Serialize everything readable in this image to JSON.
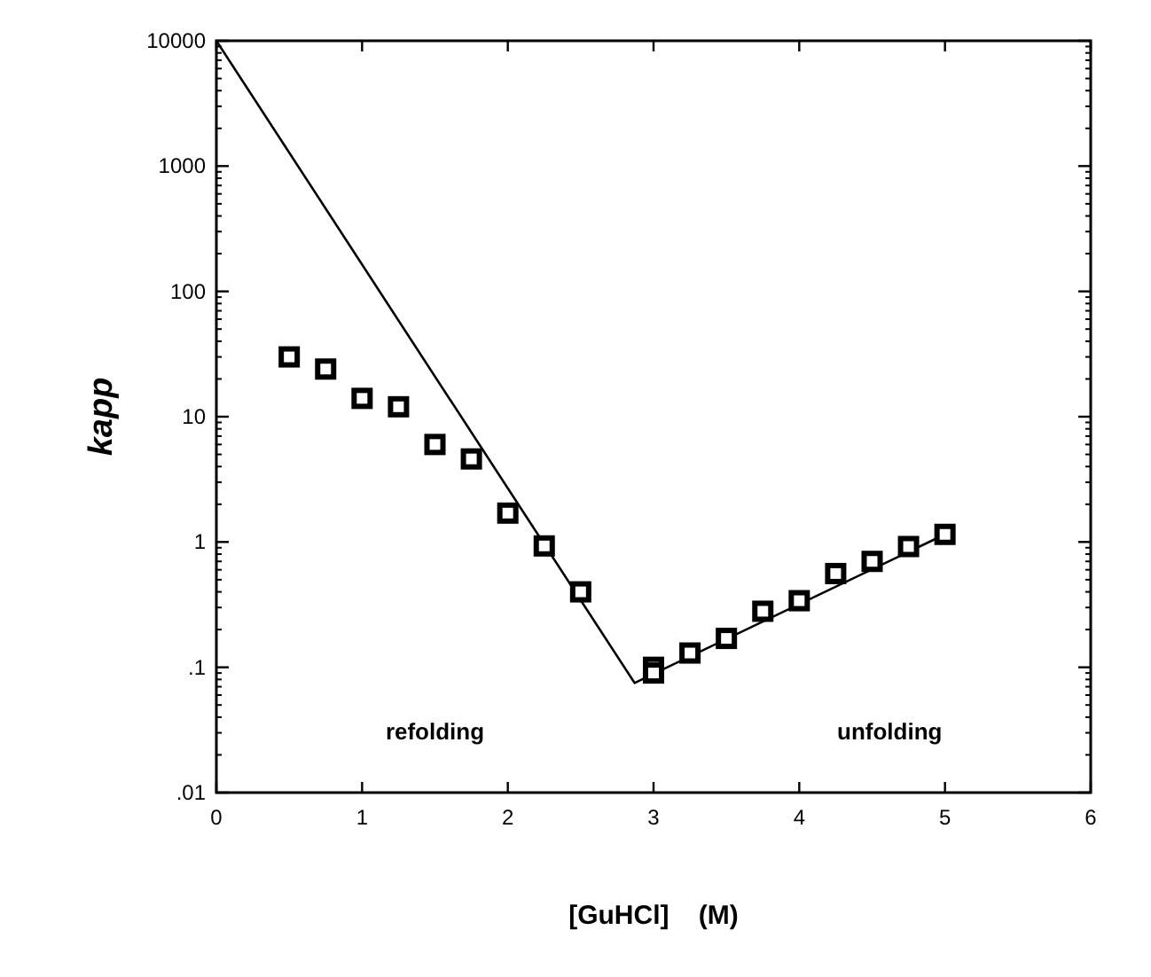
{
  "chart_data": {
    "type": "scatter",
    "xlabel": "[GuHCl]    (M)",
    "ylabel": "kapp",
    "log": "y",
    "xlim": [
      0,
      6
    ],
    "xticks": [
      0,
      1,
      2,
      3,
      4,
      5,
      6
    ],
    "ylim": [
      0.01,
      10000
    ],
    "yticks": [
      {
        "value": 0.01,
        "label": ".01"
      },
      {
        "value": 0.1,
        "label": ".1"
      },
      1,
      10,
      100,
      1000,
      10000
    ],
    "marker": "square",
    "grid": false,
    "series": [
      {
        "color": "#000000",
        "x": [
          0.5,
          0.75,
          1,
          1.25,
          1.5,
          1.75,
          2,
          2.25,
          2.5,
          3,
          3,
          3.25,
          3.5,
          3.75,
          4,
          4.25,
          4.5,
          4.75,
          5
        ],
        "values": [
          30,
          24,
          14,
          12,
          6,
          4.6,
          1.7,
          0.93,
          0.4,
          0.1,
          0.09,
          0.13,
          0.17,
          0.28,
          0.34,
          0.56,
          0.7,
          0.92,
          1.15
        ]
      },
      {
        "type": "line",
        "color": "#000000",
        "x": [
          0,
          2.87,
          5
        ],
        "values": [
          10000,
          0.075,
          1.15
        ],
        "marker": "none",
        "line_style": "solid"
      }
    ],
    "annotations": [
      "refolding",
      "unfolding"
    ]
  }
}
